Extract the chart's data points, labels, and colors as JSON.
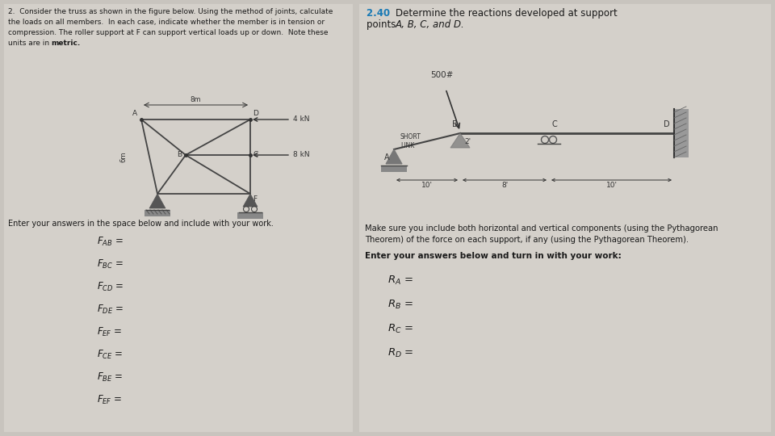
{
  "bg_color": "#c8c4be",
  "left_bg": "#d4d0ca",
  "right_bg": "#d4d0ca",
  "left_title_lines": [
    "2.  Consider the truss as shown in the figure below. Using the method of joints, calculate",
    "the loads on all members.  In each case, indicate whether the member is in tension or",
    "compression. The roller support at F can support vertical loads up or down.  Note these",
    "units are in "
  ],
  "left_title_bold": "metric.",
  "answer_intro": "Enter your answers in the space below and include with your work.",
  "left_answers": [
    "F_{AB} =",
    "F_{BC} =",
    "F_{CD} =",
    "F_{DE} =",
    "F_{EF} =",
    "F_{CE} =",
    "F_{BE} =",
    "F_{EF} ="
  ],
  "right_prob_num": "2.40",
  "right_title_line1": "Determine the reactions developed at support",
  "right_title_line2_plain": "points ",
  "right_title_line2_italic": "A, B, C, and D.",
  "right_body": "Make sure you include both horizontal and vertical components (using the Pythagorean\nTheorem) of the force on each support, if any (using the Pythagorean Theorem).",
  "right_bold_line": "Enter your answers below and turn in with your work:",
  "right_answers": [
    "R_A =",
    "R_B =",
    "R_C =",
    "R_D ="
  ],
  "truss_color": "#444444",
  "support_color": "#555555",
  "frame_color": "#444444"
}
